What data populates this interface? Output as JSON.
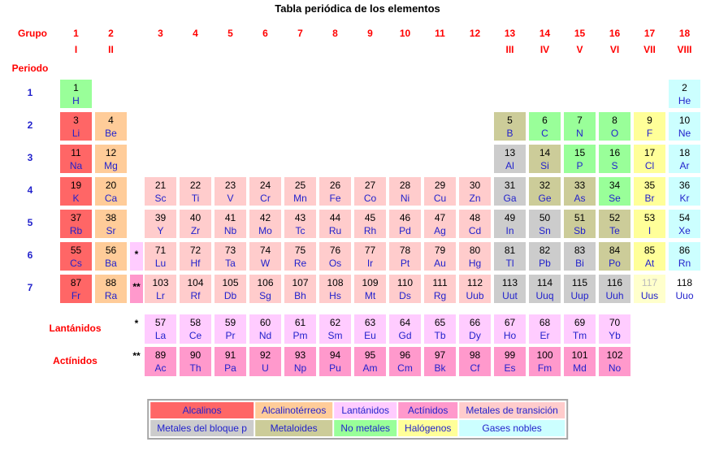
{
  "title": "Tabla periódica de los elementos",
  "labels": {
    "group": "Grupo",
    "period": "Periodo",
    "lanthanides": "Lantánidos",
    "actinides": "Actínidos",
    "lan_marker": "*",
    "act_marker": "**"
  },
  "colors": {
    "alkali": "#ff6666",
    "alkaline": "#ffcc99",
    "transition": "#ffcccc",
    "pblock": "#cccccc",
    "metalloid": "#cccc99",
    "nonmetal": "#99ff99",
    "halogen": "#ffff99",
    "noble": "#ccffff",
    "lanthanide": "#ffccff",
    "actinide": "#ff99cc",
    "undiscovered": "#ffffcc",
    "none": "#ffffff",
    "heading_red": "#ff0000",
    "period_blue": "#2222cc",
    "symbol_blue": "#2222cc",
    "number_black": "#000000",
    "undiscovered_number": "#bbbbbb",
    "legend_border": "#a6a6a6",
    "legend_text": "#2222cc"
  },
  "groups": [
    [
      "1",
      "I"
    ],
    [
      "2",
      "II"
    ],
    [
      "3",
      ""
    ],
    [
      "4",
      ""
    ],
    [
      "5",
      ""
    ],
    [
      "6",
      ""
    ],
    [
      "7",
      ""
    ],
    [
      "8",
      ""
    ],
    [
      "9",
      ""
    ],
    [
      "10",
      ""
    ],
    [
      "11",
      ""
    ],
    [
      "12",
      ""
    ],
    [
      "13",
      "III"
    ],
    [
      "14",
      "IV"
    ],
    [
      "15",
      "V"
    ],
    [
      "16",
      "VI"
    ],
    [
      "17",
      "VII"
    ],
    [
      "18",
      "VIII"
    ]
  ],
  "periods": [
    "1",
    "2",
    "3",
    "4",
    "5",
    "6",
    "7"
  ],
  "elements": [
    [
      1,
      1,
      1,
      "H",
      "nonmetal"
    ],
    [
      1,
      18,
      2,
      "He",
      "noble"
    ],
    [
      2,
      1,
      3,
      "Li",
      "alkali"
    ],
    [
      2,
      2,
      4,
      "Be",
      "alkaline"
    ],
    [
      2,
      13,
      5,
      "B",
      "metalloid"
    ],
    [
      2,
      14,
      6,
      "C",
      "nonmetal"
    ],
    [
      2,
      15,
      7,
      "N",
      "nonmetal"
    ],
    [
      2,
      16,
      8,
      "O",
      "nonmetal"
    ],
    [
      2,
      17,
      9,
      "F",
      "halogen"
    ],
    [
      2,
      18,
      10,
      "Ne",
      "noble"
    ],
    [
      3,
      1,
      11,
      "Na",
      "alkali"
    ],
    [
      3,
      2,
      12,
      "Mg",
      "alkaline"
    ],
    [
      3,
      13,
      13,
      "Al",
      "pblock"
    ],
    [
      3,
      14,
      14,
      "Si",
      "metalloid"
    ],
    [
      3,
      15,
      15,
      "P",
      "nonmetal"
    ],
    [
      3,
      16,
      16,
      "S",
      "nonmetal"
    ],
    [
      3,
      17,
      17,
      "Cl",
      "halogen"
    ],
    [
      3,
      18,
      18,
      "Ar",
      "noble"
    ],
    [
      4,
      1,
      19,
      "K",
      "alkali"
    ],
    [
      4,
      2,
      20,
      "Ca",
      "alkaline"
    ],
    [
      4,
      3,
      21,
      "Sc",
      "transition"
    ],
    [
      4,
      4,
      22,
      "Ti",
      "transition"
    ],
    [
      4,
      5,
      23,
      "V",
      "transition"
    ],
    [
      4,
      6,
      24,
      "Cr",
      "transition"
    ],
    [
      4,
      7,
      25,
      "Mn",
      "transition"
    ],
    [
      4,
      8,
      26,
      "Fe",
      "transition"
    ],
    [
      4,
      9,
      27,
      "Co",
      "transition"
    ],
    [
      4,
      10,
      28,
      "Ni",
      "transition"
    ],
    [
      4,
      11,
      29,
      "Cu",
      "transition"
    ],
    [
      4,
      12,
      30,
      "Zn",
      "transition"
    ],
    [
      4,
      13,
      31,
      "Ga",
      "pblock"
    ],
    [
      4,
      14,
      32,
      "Ge",
      "metalloid"
    ],
    [
      4,
      15,
      33,
      "As",
      "metalloid"
    ],
    [
      4,
      16,
      34,
      "Se",
      "nonmetal"
    ],
    [
      4,
      17,
      35,
      "Br",
      "halogen"
    ],
    [
      4,
      18,
      36,
      "Kr",
      "noble"
    ],
    [
      5,
      1,
      37,
      "Rb",
      "alkali"
    ],
    [
      5,
      2,
      38,
      "Sr",
      "alkaline"
    ],
    [
      5,
      3,
      39,
      "Y",
      "transition"
    ],
    [
      5,
      4,
      40,
      "Zr",
      "transition"
    ],
    [
      5,
      5,
      41,
      "Nb",
      "transition"
    ],
    [
      5,
      6,
      42,
      "Mo",
      "transition"
    ],
    [
      5,
      7,
      43,
      "Tc",
      "transition"
    ],
    [
      5,
      8,
      44,
      "Ru",
      "transition"
    ],
    [
      5,
      9,
      45,
      "Rh",
      "transition"
    ],
    [
      5,
      10,
      46,
      "Pd",
      "transition"
    ],
    [
      5,
      11,
      47,
      "Ag",
      "transition"
    ],
    [
      5,
      12,
      48,
      "Cd",
      "transition"
    ],
    [
      5,
      13,
      49,
      "In",
      "pblock"
    ],
    [
      5,
      14,
      50,
      "Sn",
      "pblock"
    ],
    [
      5,
      15,
      51,
      "Sb",
      "metalloid"
    ],
    [
      5,
      16,
      52,
      "Te",
      "metalloid"
    ],
    [
      5,
      17,
      53,
      "I",
      "halogen"
    ],
    [
      5,
      18,
      54,
      "Xe",
      "noble"
    ],
    [
      6,
      1,
      55,
      "Cs",
      "alkali"
    ],
    [
      6,
      2,
      56,
      "Ba",
      "alkaline"
    ],
    [
      6,
      3,
      71,
      "Lu",
      "transition"
    ],
    [
      6,
      4,
      72,
      "Hf",
      "transition"
    ],
    [
      6,
      5,
      73,
      "Ta",
      "transition"
    ],
    [
      6,
      6,
      74,
      "W",
      "transition"
    ],
    [
      6,
      7,
      75,
      "Re",
      "transition"
    ],
    [
      6,
      8,
      76,
      "Os",
      "transition"
    ],
    [
      6,
      9,
      77,
      "Ir",
      "transition"
    ],
    [
      6,
      10,
      78,
      "Pt",
      "transition"
    ],
    [
      6,
      11,
      79,
      "Au",
      "transition"
    ],
    [
      6,
      12,
      80,
      "Hg",
      "transition"
    ],
    [
      6,
      13,
      81,
      "Tl",
      "pblock"
    ],
    [
      6,
      14,
      82,
      "Pb",
      "pblock"
    ],
    [
      6,
      15,
      83,
      "Bi",
      "pblock"
    ],
    [
      6,
      16,
      84,
      "Po",
      "metalloid"
    ],
    [
      6,
      17,
      85,
      "At",
      "halogen"
    ],
    [
      6,
      18,
      86,
      "Rn",
      "noble"
    ],
    [
      7,
      1,
      87,
      "Fr",
      "alkali"
    ],
    [
      7,
      2,
      88,
      "Ra",
      "alkaline"
    ],
    [
      7,
      3,
      103,
      "Lr",
      "transition"
    ],
    [
      7,
      4,
      104,
      "Rf",
      "transition"
    ],
    [
      7,
      5,
      105,
      "Db",
      "transition"
    ],
    [
      7,
      6,
      106,
      "Sg",
      "transition"
    ],
    [
      7,
      7,
      107,
      "Bh",
      "transition"
    ],
    [
      7,
      8,
      108,
      "Hs",
      "transition"
    ],
    [
      7,
      9,
      109,
      "Mt",
      "transition"
    ],
    [
      7,
      10,
      110,
      "Ds",
      "transition"
    ],
    [
      7,
      11,
      111,
      "Rg",
      "transition"
    ],
    [
      7,
      12,
      112,
      "Uub",
      "transition"
    ],
    [
      7,
      13,
      113,
      "Uut",
      "pblock"
    ],
    [
      7,
      14,
      114,
      "Uuq",
      "pblock"
    ],
    [
      7,
      15,
      115,
      "Uup",
      "pblock"
    ],
    [
      7,
      16,
      116,
      "Uuh",
      "pblock"
    ],
    [
      7,
      17,
      117,
      "Uus",
      "undiscovered"
    ],
    [
      7,
      18,
      118,
      "Uuo",
      "none"
    ]
  ],
  "table_markers": [
    {
      "period": 6,
      "symbol": "*",
      "cat": "lanthanide"
    },
    {
      "period": 7,
      "symbol": "**",
      "cat": "actinide"
    }
  ],
  "lanthanides_row": [
    [
      57,
      "La"
    ],
    [
      58,
      "Ce"
    ],
    [
      59,
      "Pr"
    ],
    [
      60,
      "Nd"
    ],
    [
      61,
      "Pm"
    ],
    [
      62,
      "Sm"
    ],
    [
      63,
      "Eu"
    ],
    [
      64,
      "Gd"
    ],
    [
      65,
      "Tb"
    ],
    [
      66,
      "Dy"
    ],
    [
      67,
      "Ho"
    ],
    [
      68,
      "Er"
    ],
    [
      69,
      "Tm"
    ],
    [
      70,
      "Yb"
    ]
  ],
  "actinides_row": [
    [
      89,
      "Ac"
    ],
    [
      90,
      "Th"
    ],
    [
      91,
      "Pa"
    ],
    [
      92,
      "U"
    ],
    [
      93,
      "Np"
    ],
    [
      94,
      "Pu"
    ],
    [
      95,
      "Am"
    ],
    [
      96,
      "Cm"
    ],
    [
      97,
      "Bk"
    ],
    [
      98,
      "Cf"
    ],
    [
      99,
      "Es"
    ],
    [
      100,
      "Fm"
    ],
    [
      101,
      "Md"
    ],
    [
      102,
      "No"
    ]
  ],
  "legend": {
    "rows": [
      [
        {
          "label": "Alcalinos",
          "cat": "alkali"
        },
        {
          "label": "Alcalinotérreos",
          "cat": "alkaline"
        },
        {
          "label": "Lantánidos",
          "cat": "lanthanide"
        },
        {
          "label": "Actínidos",
          "cat": "actinide"
        },
        {
          "label": "Metales de transición",
          "cat": "transition"
        }
      ],
      [
        {
          "label": "Metales del bloque p",
          "cat": "pblock"
        },
        {
          "label": "Metaloides",
          "cat": "metalloid"
        },
        {
          "label": "No metales",
          "cat": "nonmetal"
        },
        {
          "label": "Halógenos",
          "cat": "halogen"
        },
        {
          "label": "Gases nobles",
          "cat": "noble"
        }
      ]
    ]
  }
}
